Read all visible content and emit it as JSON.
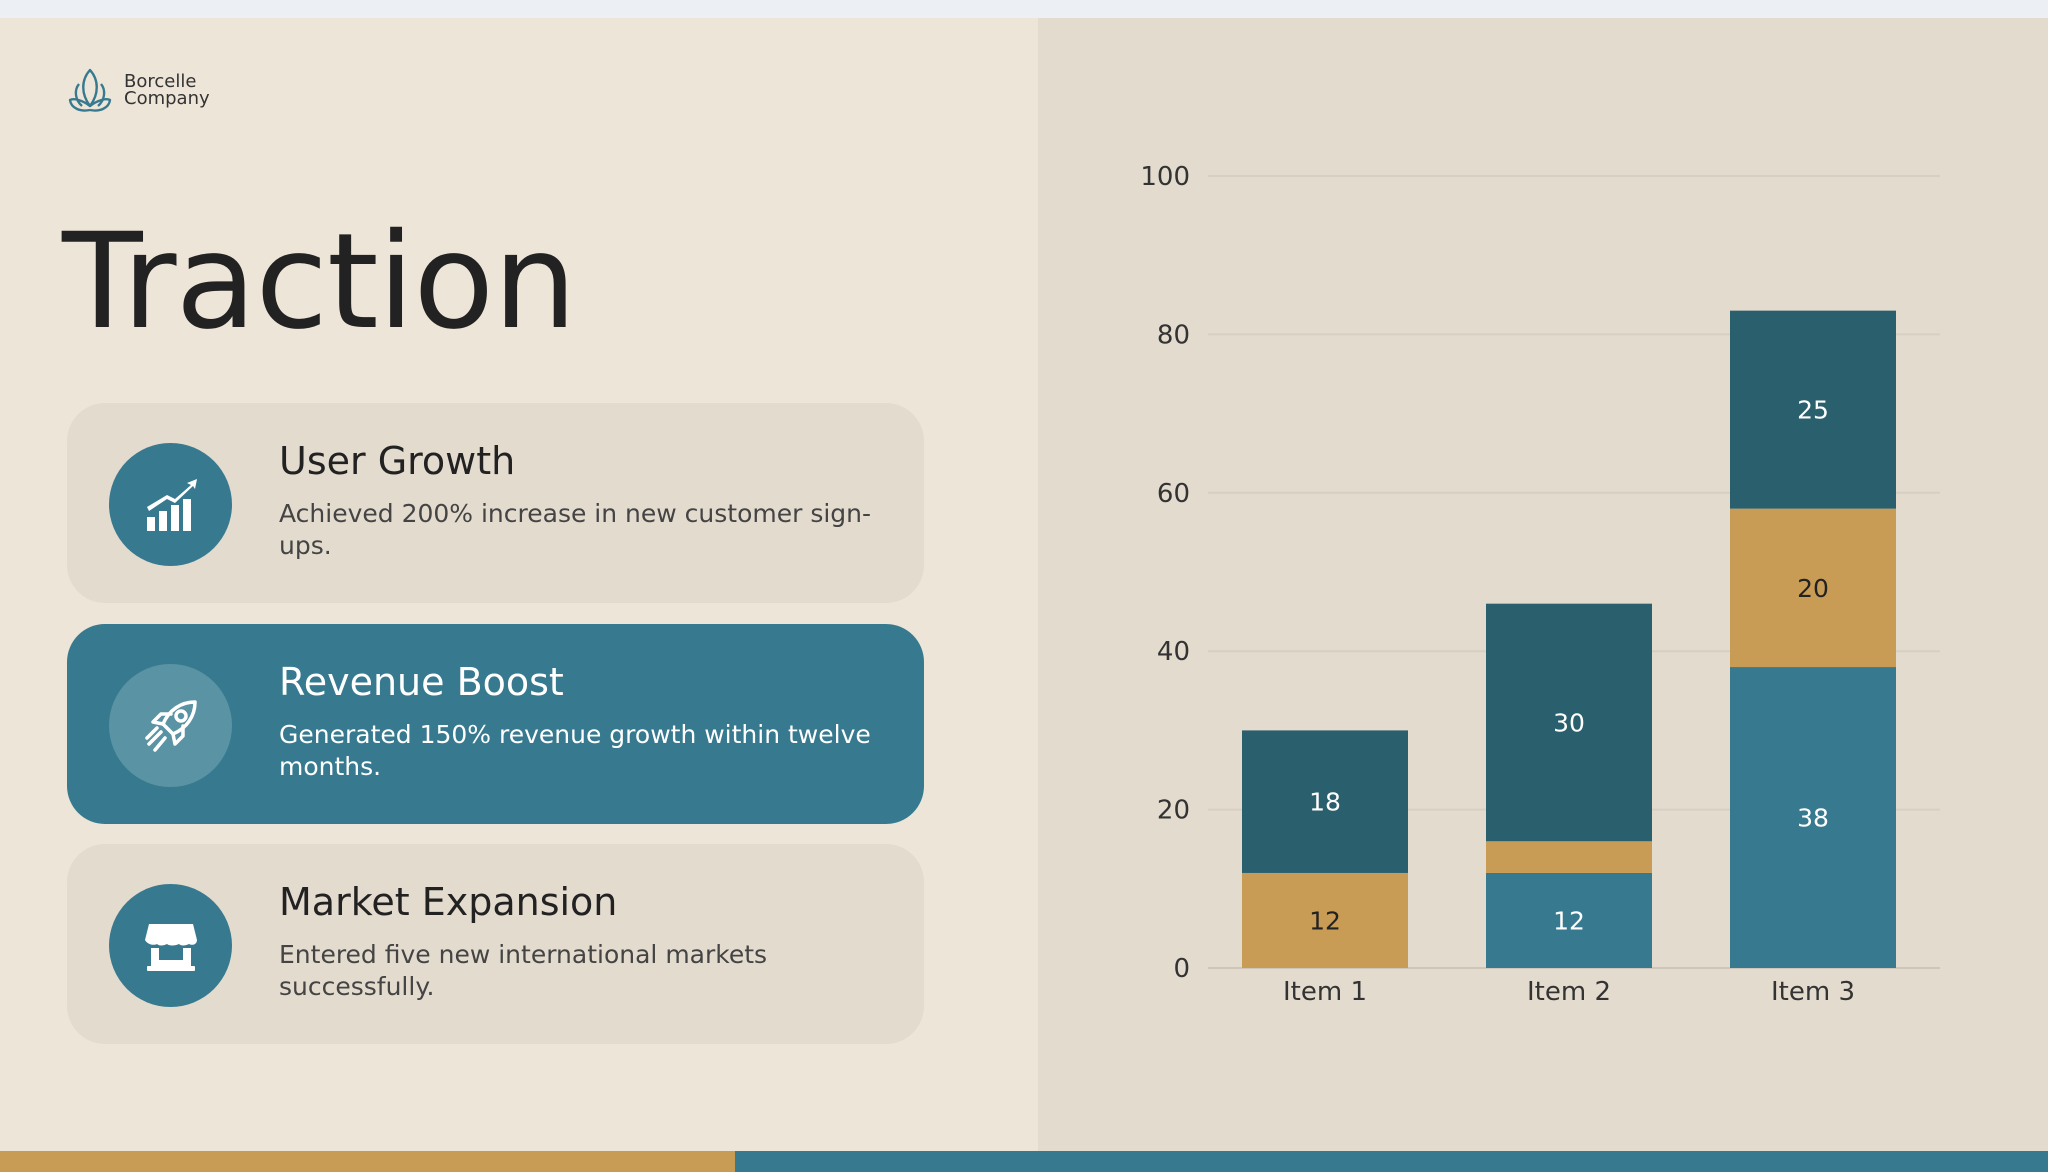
{
  "brand": {
    "line1": "Borcelle",
    "line2": "Company"
  },
  "title": "Traction",
  "cards": [
    {
      "heading": "User Growth",
      "text": "Achieved 200% increase in new customer sign-ups.",
      "icon": "growth-chart-icon"
    },
    {
      "heading": "Revenue Boost",
      "text": "Generated 150% revenue growth within twelve months.",
      "icon": "rocket-icon"
    },
    {
      "heading": "Market Expansion",
      "text": "Entered five new international markets successfully.",
      "icon": "storefront-icon"
    }
  ],
  "colors": {
    "teal": "#377a8f",
    "dark_teal": "#2a5f6e",
    "gold": "#c99c55",
    "bg_left": "#eee5d9",
    "bg_right": "#e4dbcf"
  },
  "chart_data": {
    "type": "bar",
    "stacked": true,
    "categories": [
      "Item 1",
      "Item 2",
      "Item 3"
    ],
    "series": [
      {
        "values": [
          0,
          12,
          38
        ],
        "color": "#377a8f"
      },
      {
        "values": [
          12,
          4,
          20
        ],
        "color": "#c99c55"
      },
      {
        "values": [
          18,
          30,
          25
        ],
        "color": "#2a5f6e"
      }
    ],
    "data_labels": [
      [
        null,
        "12",
        "38"
      ],
      [
        "12",
        null,
        "20"
      ],
      [
        "18",
        "30",
        "25"
      ]
    ],
    "ylim": [
      0,
      100
    ],
    "yticks": [
      0,
      20,
      40,
      60,
      80,
      100
    ],
    "grid": true
  }
}
